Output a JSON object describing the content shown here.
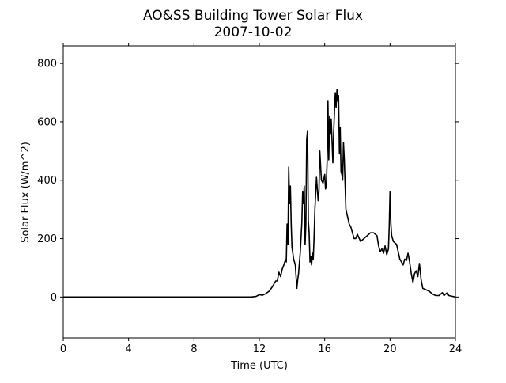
{
  "chart_data": {
    "type": "line",
    "title": "AO&SS Building Tower Solar Flux",
    "subtitle": "2007-10-02",
    "xlabel": "Time (UTC)",
    "ylabel": "Solar Flux (W/m^2)",
    "xlim": [
      0,
      24
    ],
    "ylim": [
      -140,
      860
    ],
    "xticks": [
      0,
      4,
      8,
      12,
      16,
      20,
      24
    ],
    "xtick_labels": [
      "0",
      "4",
      "8",
      "12",
      "16",
      "20",
      "24"
    ],
    "yticks": [
      0,
      200,
      400,
      600,
      800
    ],
    "ytick_labels": [
      "0",
      "200",
      "400",
      "600",
      "800"
    ],
    "grid": false,
    "line_color": "#000000",
    "series": [
      {
        "x": [
          0,
          2,
          4,
          6,
          8,
          10,
          11,
          11.5,
          11.8,
          12.0,
          12.2,
          12.4,
          12.6,
          12.8,
          13.0,
          13.1,
          13.2,
          13.3,
          13.4,
          13.5,
          13.6,
          13.65,
          13.7,
          13.75,
          13.8,
          13.85,
          13.9,
          13.95,
          14.0,
          14.05,
          14.1,
          14.2,
          14.3,
          14.35,
          14.4,
          14.5,
          14.55,
          14.6,
          14.65,
          14.7,
          14.75,
          14.8,
          14.85,
          14.9,
          14.95,
          15.0,
          15.05,
          15.1,
          15.15,
          15.2,
          15.25,
          15.3,
          15.35,
          15.4,
          15.5,
          15.6,
          15.65,
          15.7,
          15.8,
          15.9,
          16.0,
          16.05,
          16.1,
          16.15,
          16.2,
          16.25,
          16.3,
          16.35,
          16.4,
          16.5,
          16.55,
          16.6,
          16.65,
          16.7,
          16.75,
          16.8,
          16.85,
          16.9,
          16.95,
          17.0,
          17.05,
          17.1,
          17.15,
          17.2,
          17.3,
          17.5,
          17.6,
          17.7,
          17.8,
          17.9,
          18.0,
          18.2,
          18.4,
          18.6,
          18.8,
          19.0,
          19.2,
          19.3,
          19.4,
          19.5,
          19.6,
          19.7,
          19.8,
          19.9,
          19.95,
          20.0,
          20.05,
          20.1,
          20.2,
          20.4,
          20.6,
          20.7,
          20.8,
          20.9,
          21.0,
          21.1,
          21.2,
          21.3,
          21.4,
          21.5,
          21.6,
          21.7,
          21.8,
          21.9,
          22.0,
          22.2,
          22.4,
          22.6,
          22.8,
          23.0,
          23.1,
          23.2,
          23.3,
          23.4,
          23.5,
          23.6,
          24.0
        ],
        "y": [
          0,
          0,
          0,
          0,
          0,
          0,
          0,
          0,
          2,
          8,
          6,
          12,
          20,
          35,
          55,
          55,
          85,
          70,
          95,
          110,
          128,
          120,
          250,
          180,
          445,
          320,
          380,
          250,
          170,
          150,
          130,
          110,
          30,
          60,
          80,
          150,
          200,
          250,
          360,
          320,
          380,
          180,
          250,
          540,
          570,
          260,
          220,
          120,
          140,
          110,
          150,
          130,
          200,
          300,
          410,
          330,
          360,
          500,
          400,
          390,
          420,
          370,
          380,
          470,
          670,
          470,
          620,
          560,
          610,
          460,
          560,
          640,
          700,
          650,
          710,
          670,
          690,
          490,
          580,
          430,
          420,
          400,
          530,
          470,
          300,
          250,
          240,
          220,
          200,
          200,
          215,
          190,
          200,
          210,
          220,
          220,
          210,
          175,
          155,
          165,
          150,
          175,
          145,
          165,
          240,
          360,
          250,
          210,
          190,
          180,
          130,
          120,
          110,
          130,
          125,
          150,
          120,
          80,
          50,
          80,
          90,
          70,
          115,
          60,
          30,
          25,
          20,
          10,
          5,
          5,
          10,
          15,
          5,
          10,
          15,
          5,
          0
        ]
      }
    ]
  }
}
